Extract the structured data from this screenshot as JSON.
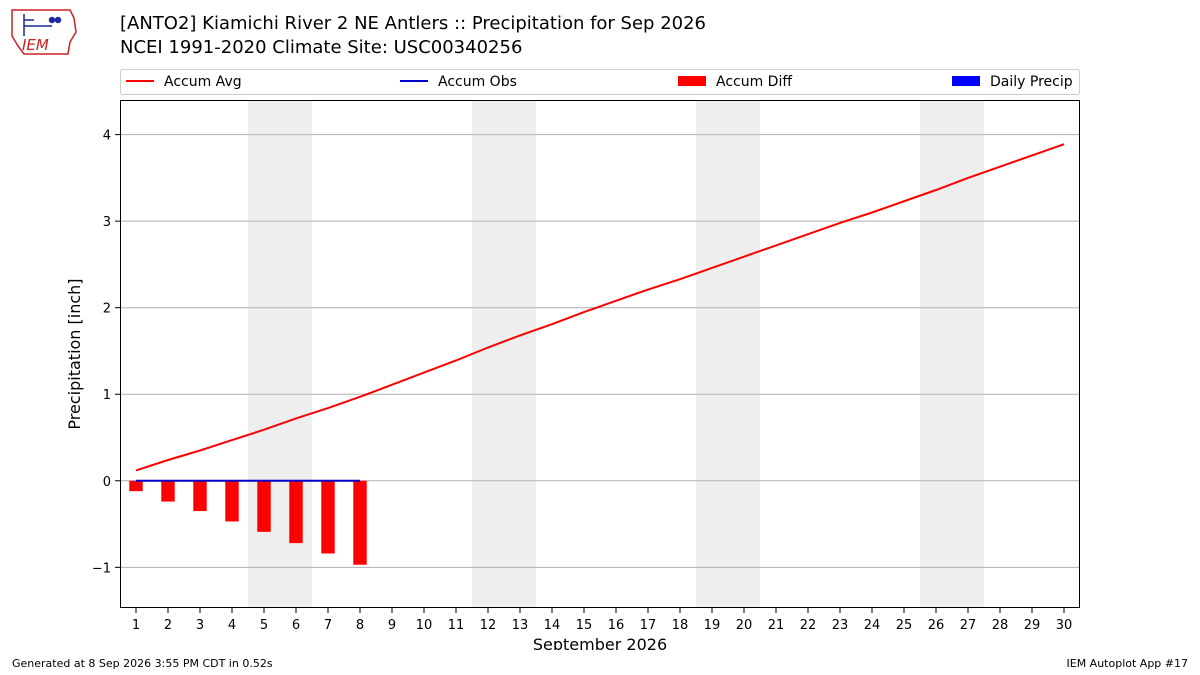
{
  "header": {
    "logo_text": "IEM",
    "title_line1": "[ANTO2] Kiamichi River 2 NE Antlers :: Precipitation for Sep 2026",
    "title_line2": "NCEI 1991-2020 Climate Site: USC00340256"
  },
  "footer": {
    "generated": "Generated at 8 Sep 2026 3:55 PM CDT in 0.52s",
    "app": "IEM Autoplot App #17"
  },
  "colors": {
    "accum_avg": "#ff0000",
    "accum_obs": "#0000cc",
    "accum_diff": "#ff0000",
    "daily_precip": "#0000ff",
    "weekend_shade": "#eeeeee",
    "grid": "#b0b0b0"
  },
  "chart_data": {
    "type": "bar",
    "xlabel": "September 2026",
    "ylabel": "Precipitation [inch]",
    "xlim": [
      0.5,
      30.5
    ],
    "ylim": [
      -1.47,
      4.4
    ],
    "y_ticks": [
      -1,
      0,
      1,
      2,
      3,
      4
    ],
    "y_tick_labels": [
      "−1",
      "0",
      "1",
      "2",
      "3",
      "4"
    ],
    "x_ticks": [
      1,
      2,
      3,
      4,
      5,
      6,
      7,
      8,
      9,
      10,
      11,
      12,
      13,
      14,
      15,
      16,
      17,
      18,
      19,
      20,
      21,
      22,
      23,
      24,
      25,
      26,
      27,
      28,
      29,
      30
    ],
    "grid": "horizontal",
    "legend": {
      "placement": "top",
      "entries": [
        {
          "label": "Accum Avg",
          "kind": "line",
          "color": "#ff0000"
        },
        {
          "label": "Accum Obs",
          "kind": "line",
          "color": "#0000cc"
        },
        {
          "label": "Accum Diff",
          "kind": "bar",
          "color": "#ff0000"
        },
        {
          "label": "Daily Precip",
          "kind": "bar",
          "color": "#0000ff"
        }
      ]
    },
    "weekend_shading": [
      [
        4.5,
        6.5
      ],
      [
        11.5,
        13.5
      ],
      [
        18.5,
        20.5
      ],
      [
        25.5,
        27.5
      ]
    ],
    "series": [
      {
        "name": "Accum Avg",
        "type": "line",
        "x": [
          1,
          2,
          3,
          4,
          5,
          6,
          7,
          8,
          9,
          10,
          11,
          12,
          13,
          14,
          15,
          16,
          17,
          18,
          19,
          20,
          21,
          22,
          23,
          24,
          25,
          26,
          27,
          28,
          29,
          30
        ],
        "values": [
          0.12,
          0.24,
          0.35,
          0.47,
          0.59,
          0.72,
          0.84,
          0.97,
          1.11,
          1.25,
          1.39,
          1.54,
          1.68,
          1.81,
          1.95,
          2.08,
          2.21,
          2.33,
          2.46,
          2.59,
          2.72,
          2.85,
          2.98,
          3.1,
          3.23,
          3.36,
          3.5,
          3.63,
          3.76,
          3.89
        ]
      },
      {
        "name": "Accum Obs",
        "type": "line",
        "x": [
          1,
          2,
          3,
          4,
          5,
          6,
          7,
          8
        ],
        "values": [
          0,
          0,
          0,
          0,
          0,
          0,
          0,
          0
        ]
      },
      {
        "name": "Accum Diff",
        "type": "bar",
        "x": [
          1,
          2,
          3,
          4,
          5,
          6,
          7,
          8
        ],
        "values": [
          -0.12,
          -0.24,
          -0.35,
          -0.47,
          -0.59,
          -0.72,
          -0.84,
          -0.97
        ]
      },
      {
        "name": "Daily Precip",
        "type": "bar",
        "x": [
          1,
          2,
          3,
          4,
          5,
          6,
          7,
          8
        ],
        "values": [
          0,
          0,
          0,
          0,
          0,
          0,
          0,
          0
        ]
      }
    ]
  }
}
